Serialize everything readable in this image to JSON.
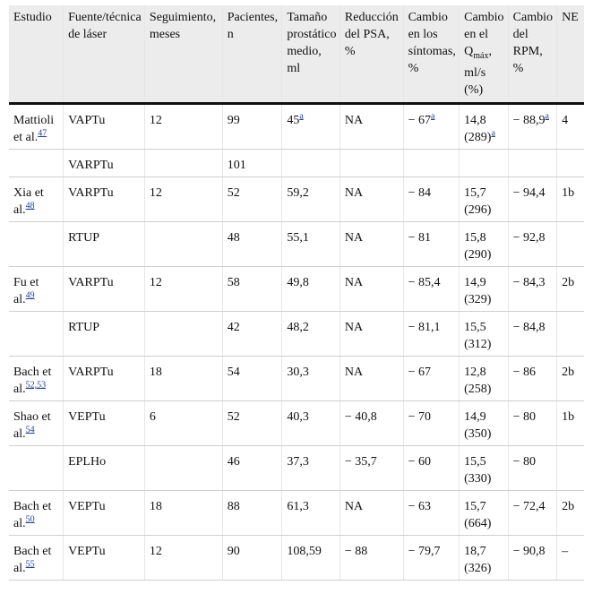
{
  "headers": {
    "estudio": "Estudio",
    "fuente": "Fuente/técnica de láser",
    "seguimiento": "Seguimiento, meses",
    "pacientes": "Pacientes, n",
    "tamano": "Tamaño prostático medio, ml",
    "psa": "Reducción del PSA, %",
    "sintomas": "Cambio en los síntomas, %",
    "qmax_pre": "Cambio en el Q",
    "qmax_sub": "máx",
    "qmax_post": ", ml/s (%)",
    "rpm": "Cambio del RPM, %",
    "ne": "NE"
  },
  "rows": [
    {
      "estudio": "Mattioli et al.",
      "ref": "47",
      "fuente": "VAPTu",
      "seg": "12",
      "pac": "99",
      "tam": "45",
      "tam_note": "a",
      "psa": "NA",
      "sint": "− 67",
      "sint_note": "a",
      "qmax": "14,8 (289)",
      "qmax_note": "a",
      "rpm": "− 88,9",
      "rpm_note": "a",
      "ne": "4"
    },
    {
      "estudio": "",
      "ref": "",
      "fuente": "VARPTu",
      "seg": "",
      "pac": "101",
      "tam": "",
      "tam_note": "",
      "psa": "",
      "sint": "",
      "sint_note": "",
      "qmax": "",
      "qmax_note": "",
      "rpm": "",
      "rpm_note": "",
      "ne": ""
    },
    {
      "estudio": "Xia et al.",
      "ref": "48",
      "fuente": "VARPTu",
      "seg": "12",
      "pac": "52",
      "tam": "59,2",
      "tam_note": "",
      "psa": "NA",
      "sint": "− 84",
      "sint_note": "",
      "qmax": "15,7 (296)",
      "qmax_note": "",
      "rpm": "− 94,4",
      "rpm_note": "",
      "ne": "1b"
    },
    {
      "estudio": "",
      "ref": "",
      "fuente": "RTUP",
      "seg": "",
      "pac": "48",
      "tam": "55,1",
      "tam_note": "",
      "psa": "NA",
      "sint": "− 81",
      "sint_note": "",
      "qmax": "15,8 (290)",
      "qmax_note": "",
      "rpm": "− 92,8",
      "rpm_note": "",
      "ne": ""
    },
    {
      "estudio": "Fu et al.",
      "ref": "49",
      "fuente": "VARPTu",
      "seg": "12",
      "pac": "58",
      "tam": "49,8",
      "tam_note": "",
      "psa": "NA",
      "sint": "− 85,4",
      "sint_note": "",
      "qmax": "14,9 (329)",
      "qmax_note": "",
      "rpm": "− 84,3",
      "rpm_note": "",
      "ne": "2b"
    },
    {
      "estudio": "",
      "ref": "",
      "fuente": "RTUP",
      "seg": "",
      "pac": "42",
      "tam": "48,2",
      "tam_note": "",
      "psa": "NA",
      "sint": "− 81,1",
      "sint_note": "",
      "qmax": "15,5 (312)",
      "qmax_note": "",
      "rpm": "− 84,8",
      "rpm_note": "",
      "ne": ""
    },
    {
      "estudio": "Bach et al.",
      "ref": "52,53",
      "fuente": "VARPTu",
      "seg": "18",
      "pac": "54",
      "tam": "30,3",
      "tam_note": "",
      "psa": "NA",
      "sint": "− 67",
      "sint_note": "",
      "qmax": "12,8 (258)",
      "qmax_note": "",
      "rpm": "− 86",
      "rpm_note": "",
      "ne": "2b"
    },
    {
      "estudio": "Shao et al.",
      "ref": "54",
      "fuente": "VEPTu",
      "seg": "6",
      "pac": "52",
      "tam": "40,3",
      "tam_note": "",
      "psa": "− 40,8",
      "sint": "− 70",
      "sint_note": "",
      "qmax": "14,9 (350)",
      "qmax_note": "",
      "rpm": "− 80",
      "rpm_note": "",
      "ne": "1b"
    },
    {
      "estudio": "",
      "ref": "",
      "fuente": "EPLHo",
      "seg": "",
      "pac": "46",
      "tam": "37,3",
      "tam_note": "",
      "psa": "− 35,7",
      "sint": "− 60",
      "sint_note": "",
      "qmax": "15,5 (330)",
      "qmax_note": "",
      "rpm": "− 80",
      "rpm_note": "",
      "ne": ""
    },
    {
      "estudio": "Bach et al.",
      "ref": "50",
      "fuente": "VEPTu",
      "seg": "18",
      "pac": "88",
      "tam": "61,3",
      "tam_note": "",
      "psa": "NA",
      "sint": "− 63",
      "sint_note": "",
      "qmax": "15,7 (664)",
      "qmax_note": "",
      "rpm": "− 72,4",
      "rpm_note": "",
      "ne": "2b"
    },
    {
      "estudio": "Bach et al.",
      "ref": "55",
      "fuente": "VEPTu",
      "seg": "12",
      "pac": "90",
      "tam": "108,59",
      "tam_note": "",
      "psa": "− 88",
      "sint": "− 79,7",
      "sint_note": "",
      "qmax": "18,7 (326)",
      "qmax_note": "",
      "rpm": "− 90,8",
      "rpm_note": "",
      "ne": "–"
    }
  ]
}
